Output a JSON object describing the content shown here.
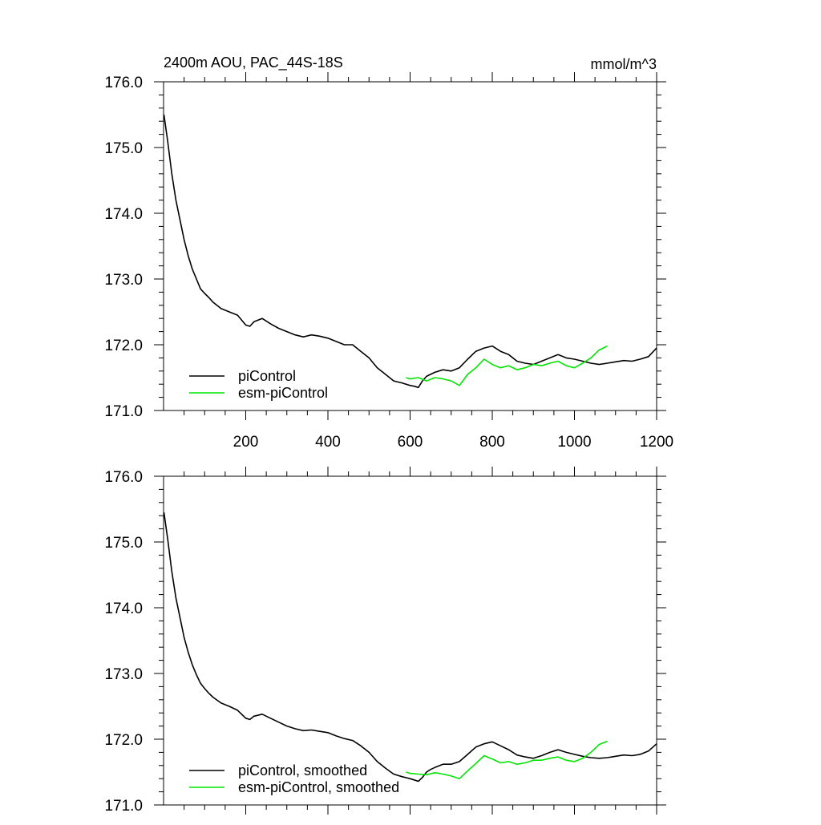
{
  "chart_data": [
    {
      "type": "line",
      "title": "2400m AOU, PAC_44S-18S",
      "units": "mmol/m^3",
      "xlim": [
        0,
        1200
      ],
      "ylim": [
        171.0,
        176.0
      ],
      "x_ticks": [
        200,
        400,
        600,
        800,
        1000,
        1200
      ],
      "x_tick_labels": [
        "200",
        "400",
        "600",
        "800",
        "1000",
        "1200"
      ],
      "y_ticks": [
        171,
        172,
        173,
        174,
        175,
        176
      ],
      "y_tick_labels": [
        "171.0",
        "172.0",
        "173.0",
        "174.0",
        "175.0",
        "176.0"
      ],
      "legend_position": "bottom-left",
      "series": [
        {
          "name": "piControl",
          "color": "#000000",
          "x": [
            1,
            10,
            20,
            30,
            40,
            50,
            60,
            70,
            80,
            90,
            100,
            110,
            120,
            140,
            160,
            180,
            200,
            210,
            220,
            240,
            260,
            280,
            300,
            320,
            340,
            360,
            380,
            400,
            420,
            440,
            460,
            480,
            500,
            520,
            540,
            560,
            580,
            600,
            610,
            620,
            630,
            640,
            650,
            660,
            680,
            700,
            720,
            740,
            760,
            780,
            800,
            820,
            840,
            860,
            880,
            900,
            920,
            940,
            960,
            980,
            1000,
            1020,
            1040,
            1060,
            1080,
            1100,
            1120,
            1140,
            1160,
            1180,
            1200
          ],
          "y": [
            175.5,
            175.1,
            174.6,
            174.2,
            173.9,
            173.6,
            173.35,
            173.15,
            173.0,
            172.85,
            172.78,
            172.72,
            172.65,
            172.55,
            172.5,
            172.45,
            172.3,
            172.28,
            172.35,
            172.4,
            172.32,
            172.25,
            172.2,
            172.15,
            172.12,
            172.15,
            172.13,
            172.1,
            172.05,
            172.0,
            172.0,
            171.9,
            171.8,
            171.65,
            171.55,
            171.45,
            171.42,
            171.38,
            171.37,
            171.35,
            171.45,
            171.52,
            171.55,
            171.58,
            171.62,
            171.6,
            171.65,
            171.78,
            171.9,
            171.95,
            171.98,
            171.9,
            171.85,
            171.75,
            171.72,
            171.7,
            171.75,
            171.8,
            171.85,
            171.8,
            171.78,
            171.75,
            171.72,
            171.7,
            171.72,
            171.74,
            171.76,
            171.75,
            171.78,
            171.82,
            171.95
          ]
        },
        {
          "name": "esm-piControl",
          "color": "#00e600",
          "x": [
            590,
            600,
            620,
            640,
            660,
            680,
            700,
            720,
            740,
            760,
            780,
            800,
            820,
            840,
            860,
            880,
            900,
            920,
            940,
            960,
            980,
            1000,
            1020,
            1040,
            1060,
            1080
          ],
          "y": [
            171.5,
            171.48,
            171.5,
            171.45,
            171.5,
            171.48,
            171.45,
            171.38,
            171.55,
            171.65,
            171.78,
            171.7,
            171.65,
            171.68,
            171.62,
            171.65,
            171.7,
            171.68,
            171.72,
            171.75,
            171.68,
            171.65,
            171.72,
            171.8,
            171.92,
            171.98
          ]
        }
      ]
    },
    {
      "type": "line",
      "xlim": [
        0,
        1200
      ],
      "ylim": [
        171.0,
        176.0
      ],
      "y_ticks": [
        171,
        172,
        173,
        174,
        175,
        176
      ],
      "y_tick_labels": [
        "171.0",
        "172.0",
        "173.0",
        "174.0",
        "175.0",
        "176.0"
      ],
      "legend_position": "bottom-left",
      "series": [
        {
          "name": "piControl, smoothed",
          "color": "#000000",
          "x": [
            1,
            10,
            20,
            30,
            40,
            50,
            60,
            70,
            80,
            90,
            100,
            110,
            120,
            140,
            160,
            180,
            200,
            210,
            220,
            240,
            260,
            280,
            300,
            320,
            340,
            360,
            380,
            400,
            420,
            440,
            460,
            480,
            500,
            520,
            540,
            560,
            580,
            600,
            610,
            620,
            630,
            640,
            650,
            660,
            680,
            700,
            720,
            740,
            760,
            780,
            800,
            820,
            840,
            860,
            880,
            900,
            920,
            940,
            960,
            980,
            1000,
            1020,
            1040,
            1060,
            1080,
            1100,
            1120,
            1140,
            1160,
            1180,
            1200
          ],
          "y": [
            175.45,
            175.05,
            174.55,
            174.15,
            173.85,
            173.55,
            173.32,
            173.13,
            172.98,
            172.85,
            172.77,
            172.7,
            172.64,
            172.55,
            172.5,
            172.44,
            172.32,
            172.3,
            172.35,
            172.38,
            172.32,
            172.26,
            172.2,
            172.16,
            172.13,
            172.14,
            172.12,
            172.1,
            172.05,
            172.01,
            171.98,
            171.9,
            171.8,
            171.66,
            171.56,
            171.47,
            171.43,
            171.4,
            171.38,
            171.36,
            171.42,
            171.5,
            171.54,
            171.57,
            171.62,
            171.62,
            171.66,
            171.77,
            171.88,
            171.93,
            171.96,
            171.9,
            171.84,
            171.76,
            171.73,
            171.71,
            171.75,
            171.8,
            171.84,
            171.8,
            171.77,
            171.74,
            171.72,
            171.71,
            171.72,
            171.74,
            171.76,
            171.75,
            171.77,
            171.82,
            171.93
          ]
        },
        {
          "name": "esm-piControl, smoothed",
          "color": "#00e600",
          "x": [
            590,
            600,
            620,
            640,
            660,
            680,
            700,
            720,
            740,
            760,
            780,
            800,
            820,
            840,
            860,
            880,
            900,
            920,
            940,
            960,
            980,
            1000,
            1020,
            1040,
            1060,
            1080
          ],
          "y": [
            171.5,
            171.48,
            171.47,
            171.46,
            171.49,
            171.47,
            171.44,
            171.4,
            171.52,
            171.63,
            171.75,
            171.7,
            171.64,
            171.66,
            171.62,
            171.64,
            171.68,
            171.68,
            171.71,
            171.73,
            171.68,
            171.66,
            171.71,
            171.8,
            171.92,
            171.97
          ]
        }
      ]
    }
  ]
}
